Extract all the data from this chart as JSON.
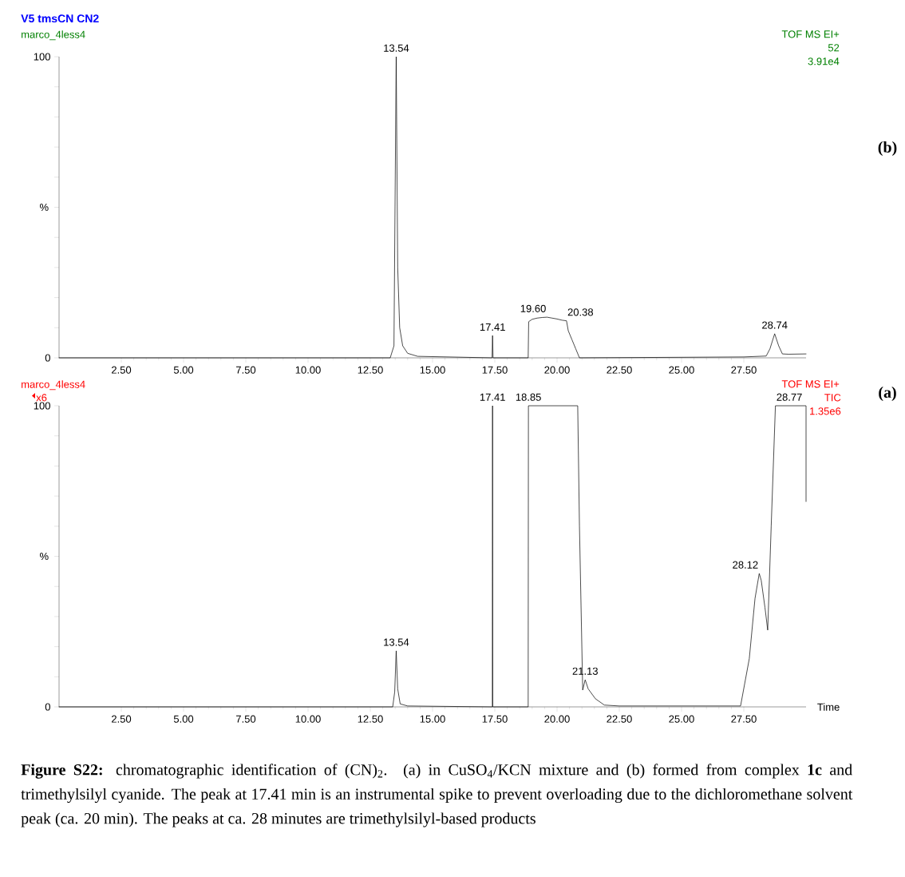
{
  "chart_data": [
    {
      "type": "line",
      "title": "V5 tmsCN CN2",
      "subtitle": "marco_4less4",
      "ylabel": "%",
      "x": [
        0,
        13.3,
        13.45,
        13.54,
        13.6,
        13.68,
        13.8,
        14.0,
        14.4,
        17.39,
        17.41,
        17.43,
        18.84,
        18.86,
        19.0,
        19.2,
        19.4,
        19.6,
        19.8,
        20.0,
        20.2,
        20.38,
        20.45,
        20.6,
        20.75,
        20.9,
        27.5,
        28.4,
        28.55,
        28.74,
        28.9,
        29.05,
        29.3,
        30.0
      ],
      "series": [
        {
          "color": "#000000",
          "values": [
            0,
            0,
            4,
            100,
            30,
            10,
            4,
            1.5,
            0.5,
            0,
            7.4,
            0,
            0,
            12,
            12.8,
            13.2,
            13.4,
            13.5,
            13.2,
            12.9,
            12.5,
            12.3,
            9,
            6,
            3,
            0,
            0.3,
            0.6,
            3,
            8,
            4,
            1.3,
            1.2,
            1.3
          ]
        }
      ],
      "xlim": [
        0,
        30
      ],
      "ylim": [
        0,
        100
      ],
      "xticks": [
        {
          "value": 2.5,
          "label": "2.50"
        },
        {
          "value": 5,
          "label": "5.00"
        },
        {
          "value": 7.5,
          "label": "7.50"
        },
        {
          "value": 10,
          "label": "10.00"
        },
        {
          "value": 12.5,
          "label": "12.50"
        },
        {
          "value": 15,
          "label": "15.00"
        },
        {
          "value": 17.5,
          "label": "17.50"
        },
        {
          "value": 20,
          "label": "20.00"
        },
        {
          "value": 22.5,
          "label": "22.50"
        },
        {
          "value": 25,
          "label": "25.00"
        },
        {
          "value": 27.5,
          "label": "27.50"
        }
      ],
      "yticks": [
        0,
        {
          "value": 10,
          "label": null
        },
        {
          "value": 20,
          "label": null
        },
        {
          "value": 30,
          "label": null
        },
        {
          "value": 40,
          "label": null
        },
        {
          "value": 50,
          "label": null
        },
        {
          "value": 60,
          "label": null
        },
        {
          "value": 70,
          "label": null
        },
        {
          "value": 80,
          "label": null
        },
        {
          "value": 90,
          "label": null
        },
        100
      ],
      "grid": false,
      "marker": "none",
      "line_style": "solid",
      "annotations": [
        {
          "text": "13.54",
          "x": 13.54,
          "y": 100
        },
        {
          "text": "17.41",
          "x": 17.41,
          "y": 7.4
        },
        {
          "text": "19.60",
          "x": 19.6,
          "y": 13.5
        },
        {
          "text": "20.38",
          "x": 20.38,
          "y": 12.3
        },
        {
          "text": "28.74",
          "x": 28.74,
          "y": 8
        },
        "TOF MS EI+",
        "52",
        "3.91e4",
        "(b)"
      ]
    },
    {
      "type": "line",
      "subtitle": "marco_4less4",
      "ylabel": "%",
      "xlabel": "Time",
      "x": [
        0,
        13.4,
        13.48,
        13.54,
        13.6,
        13.7,
        14.0,
        17.4,
        17.41,
        17.42,
        18.84,
        18.85,
        20.83,
        20.9,
        21.03,
        21.13,
        21.25,
        21.54,
        21.9,
        22.5,
        27.37,
        27.72,
        27.95,
        28.12,
        28.2,
        28.35,
        28.46,
        28.6,
        28.77,
        30.0,
        30.0
      ],
      "series": [
        {
          "color": "#000000",
          "values": [
            0,
            0,
            5,
            18.6,
            6,
            1,
            0.3,
            0,
            100,
            0,
            0,
            100,
            100,
            60,
            5.6,
            9,
            6,
            2.7,
            0.6,
            0.3,
            0.3,
            16,
            36,
            44.3,
            42,
            33,
            25.5,
            60,
            100,
            100,
            68.2
          ]
        }
      ],
      "xlim": [
        0,
        30
      ],
      "ylim": [
        0,
        100
      ],
      "xticks": [
        {
          "value": 2.5,
          "label": "2.50"
        },
        {
          "value": 5,
          "label": "5.00"
        },
        {
          "value": 7.5,
          "label": "7.50"
        },
        {
          "value": 10,
          "label": "10.00"
        },
        {
          "value": 12.5,
          "label": "12.50"
        },
        {
          "value": 15,
          "label": "15.00"
        },
        {
          "value": 17.5,
          "label": "17.50"
        },
        {
          "value": 20,
          "label": "20.00"
        },
        {
          "value": 22.5,
          "label": "22.50"
        },
        {
          "value": 25,
          "label": "25.00"
        },
        {
          "value": 27.5,
          "label": "27.50"
        }
      ],
      "yticks": [
        0,
        {
          "value": 10,
          "label": null
        },
        {
          "value": 20,
          "label": null
        },
        {
          "value": 30,
          "label": null
        },
        {
          "value": 40,
          "label": null
        },
        {
          "value": 50,
          "label": null
        },
        {
          "value": 60,
          "label": null
        },
        {
          "value": 70,
          "label": null
        },
        {
          "value": 80,
          "label": null
        },
        {
          "value": 90,
          "label": null
        },
        100
      ],
      "grid": false,
      "marker": "none",
      "line_style": "solid",
      "annotations": [
        {
          "text": "13.54",
          "x": 13.54,
          "y": 18.6
        },
        {
          "text": "17.41",
          "x": 17.41,
          "y": 100
        },
        {
          "text": "18.85",
          "x": 18.85,
          "y": 100
        },
        {
          "text": "21.13",
          "x": 21.13,
          "y": 9
        },
        {
          "text": "28.12",
          "x": 28.12,
          "y": 44.3
        },
        {
          "text": "28.77",
          "x": 28.77,
          "y": 100
        },
        "x6",
        "TOF MS EI+",
        "TIC",
        "1.35e6",
        "**Figure S22:** chromatographic identification of (CN)$_{2}$. (a) in CuSO$_{4}$/KCN mixture and (b) formed from complex **1c** and trimethylsilyl cyanide. The peak at 17.41 min is an instrumental spike to prevent overloading due to the dichloromethane solvent peak (ca. 20 min). The peaks at ca. 28 minutes are trimethylsilyl-based products",
        "(a)"
      ]
    }
  ]
}
